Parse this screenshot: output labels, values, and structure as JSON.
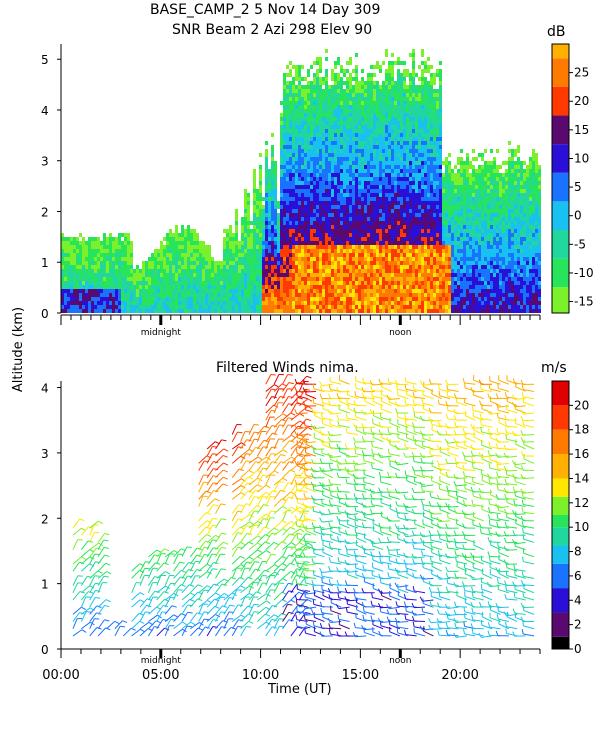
{
  "header": {
    "title_line1": "BASE_CAMP_2    5 Nov 14 Day 309",
    "title_line2": "SNR Beam 2 Azi 298 Elev 90"
  },
  "colors": {
    "scale": [
      "#000000",
      "#5a0a6e",
      "#2a0fd6",
      "#1a73ff",
      "#19c1f0",
      "#22d6a0",
      "#28e45a",
      "#7cf02a",
      "#c8f01e",
      "#ffe700",
      "#ffb000",
      "#ff7a00",
      "#ff3a00",
      "#e00000"
    ]
  },
  "chart_data": [
    {
      "type": "heatmap",
      "title": "SNR Beam 2 Azi 298 Elev 90",
      "xlabel": "",
      "ylabel": "Altitude (km)",
      "x_tick_labels": [
        "midnight",
        "noon"
      ],
      "x_range_ut_hours": [
        0,
        24
      ],
      "ylim": [
        0,
        5.3
      ],
      "y_ticks": [
        0,
        1,
        2,
        3,
        4,
        5
      ],
      "colorbar": {
        "unit": "dB",
        "ticks": [
          -15,
          -10,
          -5,
          0,
          5,
          10,
          15,
          20,
          25
        ],
        "range": [
          -17,
          30
        ]
      }
    },
    {
      "type": "scatter",
      "title": "Filtered Winds nima.",
      "xlabel": "Time (UT)",
      "ylabel": "Altitude (km)",
      "x_ticks": [
        "00:00",
        "05:00",
        "10:00",
        "15:00",
        "20:00"
      ],
      "x_tick_values": [
        0,
        5,
        10,
        15,
        20
      ],
      "x_inner_labels": [
        "midnight",
        "noon"
      ],
      "xlim": [
        0,
        24
      ],
      "ylim": [
        0,
        4.1
      ],
      "y_ticks": [
        0,
        1,
        2,
        3,
        4
      ],
      "colorbar": {
        "unit": "m/s",
        "ticks": [
          0,
          2,
          4,
          6,
          8,
          10,
          12,
          14,
          16,
          18,
          20
        ],
        "range": [
          0,
          22
        ]
      }
    }
  ],
  "axis": {
    "shared_ylabel": "Altitude (km)"
  }
}
